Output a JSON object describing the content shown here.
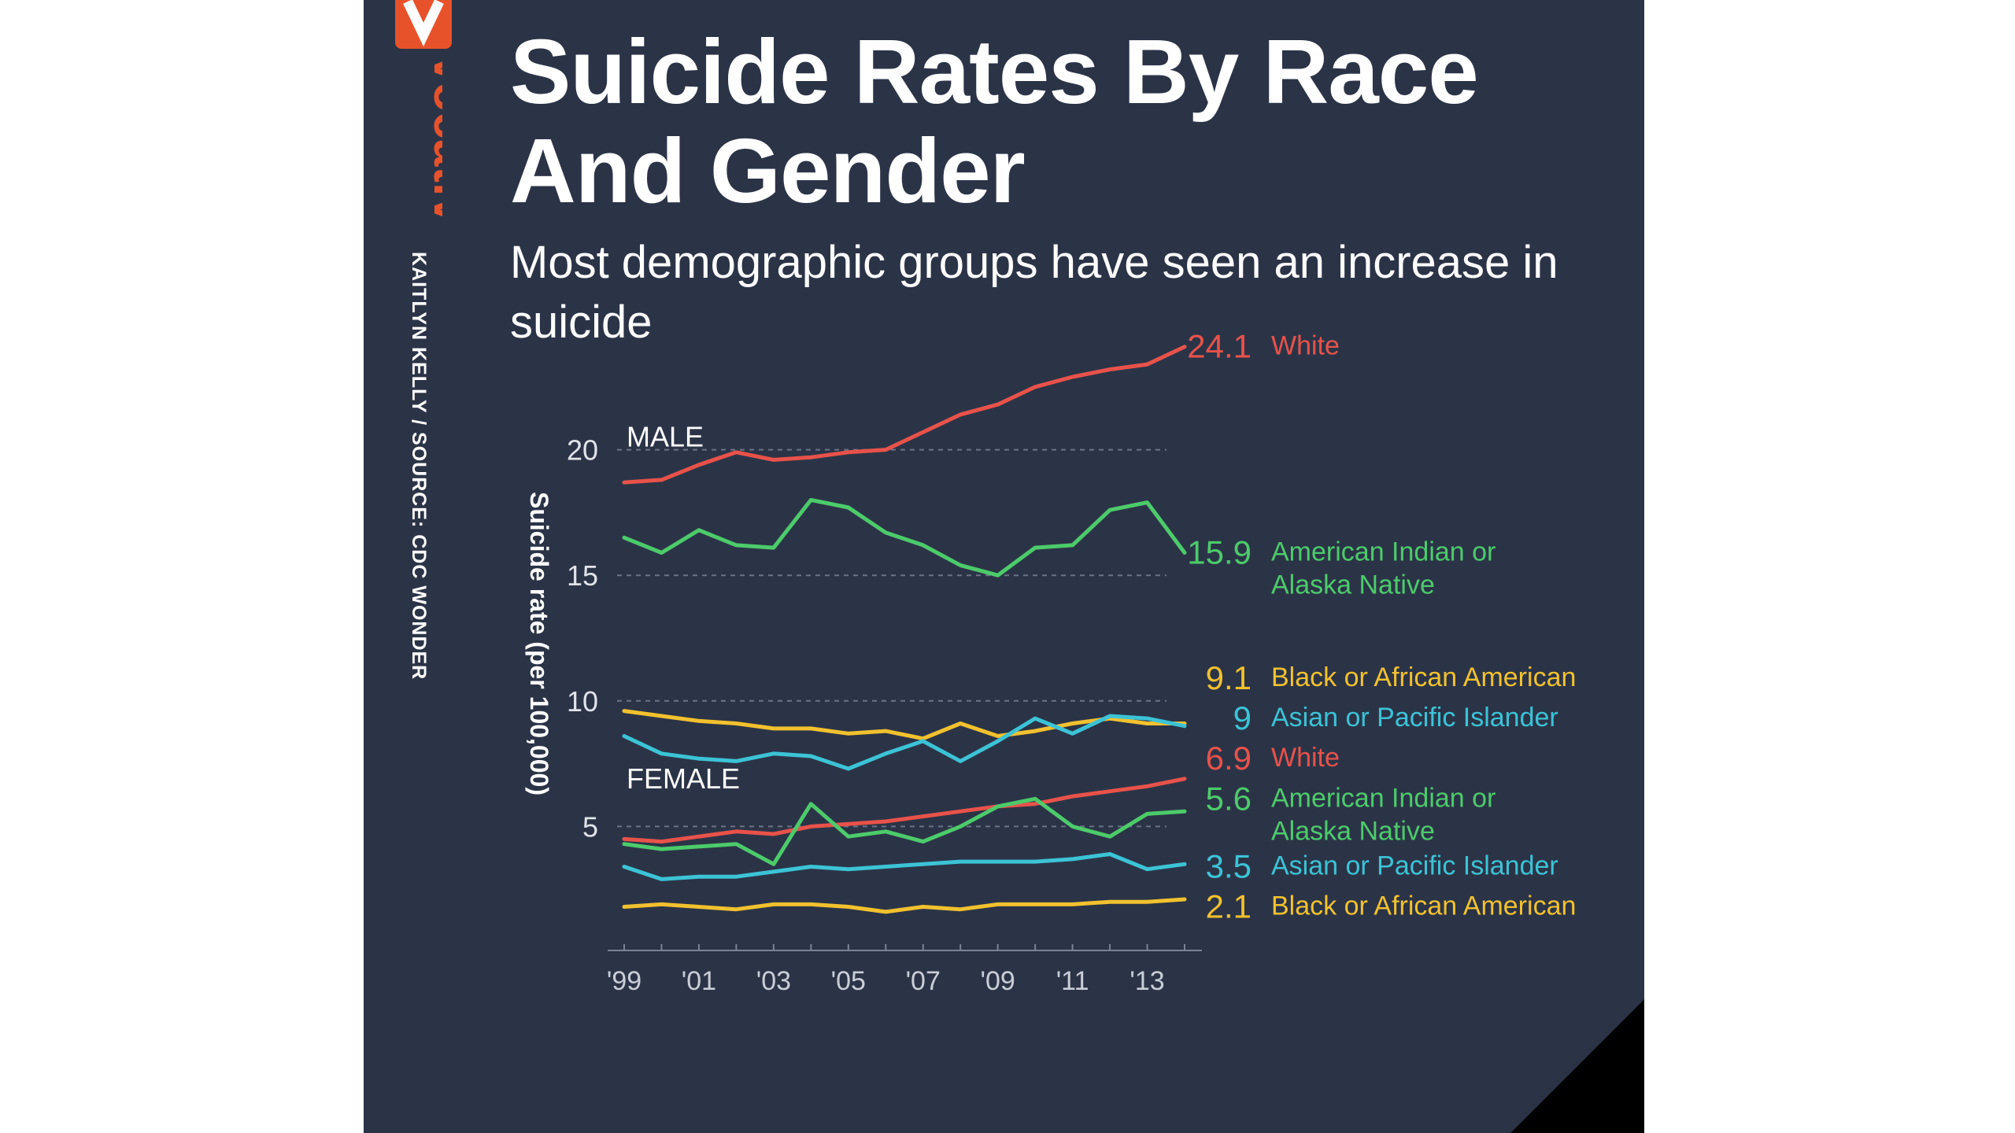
{
  "brand": {
    "name": "vocativ",
    "byline": "KAITLYN KELLY / SOURCE: CDC WONDER"
  },
  "colors": {
    "background": "#2b3447",
    "white": "#e8524a",
    "american_indian": "#4ccb6a",
    "black": "#f2c12e",
    "asian": "#3cc3d6",
    "brand": "#e8522a"
  },
  "chart_data": {
    "type": "line",
    "title": "Suicide Rates By Race And Gender",
    "subtitle": "Most demographic groups have seen an increase in suicide",
    "ylabel": "Suicide rate (per 100,000)",
    "xlabel": "",
    "ylim": [
      0,
      25
    ],
    "yticks": [
      5,
      10,
      15,
      20
    ],
    "grid": true,
    "x": [
      1999,
      2000,
      2001,
      2002,
      2003,
      2004,
      2005,
      2006,
      2007,
      2008,
      2009,
      2010,
      2011,
      2012,
      2013,
      2014
    ],
    "xtick_labels": [
      "'99",
      "'01",
      "'03",
      "'05",
      "'07",
      "'09",
      "'11",
      "'13"
    ],
    "xtick_years": [
      1999,
      2001,
      2003,
      2005,
      2007,
      2009,
      2011,
      2013
    ],
    "groups": [
      {
        "label": "MALE",
        "label_y": 20.5
      },
      {
        "label": "FEMALE",
        "label_y": 6.9
      }
    ],
    "series": [
      {
        "name": "White",
        "group": "MALE",
        "color": "#e8524a",
        "end_value": "24.1",
        "label_y": 24.1,
        "name_lines": [
          "White"
        ],
        "values": [
          18.7,
          18.8,
          19.4,
          19.9,
          19.6,
          19.7,
          19.9,
          20.0,
          20.7,
          21.4,
          21.8,
          22.5,
          22.9,
          23.2,
          23.4,
          24.1
        ]
      },
      {
        "name": "American Indian or Alaska Native",
        "group": "MALE",
        "color": "#4ccb6a",
        "end_value": "15.9",
        "label_y": 15.9,
        "name_lines": [
          "American Indian or",
          "Alaska Native"
        ],
        "values": [
          16.5,
          15.9,
          16.8,
          16.2,
          16.1,
          18.0,
          17.7,
          16.7,
          16.2,
          15.4,
          15.0,
          16.1,
          16.2,
          17.6,
          17.9,
          15.9
        ]
      },
      {
        "name": "Black or African American",
        "group": "MALE",
        "color": "#f2c12e",
        "end_value": "9.1",
        "label_y": 10.9,
        "name_lines": [
          "Black or African American"
        ],
        "values": [
          9.6,
          9.4,
          9.2,
          9.1,
          8.9,
          8.9,
          8.7,
          8.8,
          8.5,
          9.1,
          8.6,
          8.8,
          9.1,
          9.3,
          9.1,
          9.1
        ]
      },
      {
        "name": "Asian or Pacific Islander",
        "group": "MALE",
        "color": "#3cc3d6",
        "end_value": "9",
        "label_y": 9.3,
        "name_lines": [
          "Asian or Pacific Islander"
        ],
        "values": [
          8.6,
          7.9,
          7.7,
          7.6,
          7.9,
          7.8,
          7.3,
          7.9,
          8.4,
          7.6,
          8.4,
          9.3,
          8.7,
          9.4,
          9.3,
          9.0
        ]
      },
      {
        "name": "White",
        "group": "FEMALE",
        "color": "#e8524a",
        "end_value": "6.9",
        "label_y": 7.7,
        "name_lines": [
          "White"
        ],
        "values": [
          4.5,
          4.4,
          4.6,
          4.8,
          4.7,
          5.0,
          5.1,
          5.2,
          5.4,
          5.6,
          5.8,
          5.9,
          6.2,
          6.4,
          6.6,
          6.9
        ]
      },
      {
        "name": "American Indian or Alaska Native",
        "group": "FEMALE",
        "color": "#4ccb6a",
        "end_value": "5.6",
        "label_y": 6.1,
        "name_lines": [
          "American Indian or",
          "Alaska Native"
        ],
        "values": [
          4.3,
          4.1,
          4.2,
          4.3,
          3.5,
          5.9,
          4.6,
          4.8,
          4.4,
          5.0,
          5.8,
          6.1,
          5.0,
          4.6,
          5.5,
          5.6
        ]
      },
      {
        "name": "Asian or Pacific Islander",
        "group": "FEMALE",
        "color": "#3cc3d6",
        "end_value": "3.5",
        "label_y": 3.4,
        "name_lines": [
          "Asian or Pacific Islander"
        ],
        "values": [
          3.4,
          2.9,
          3.0,
          3.0,
          3.2,
          3.4,
          3.3,
          3.4,
          3.5,
          3.6,
          3.6,
          3.6,
          3.7,
          3.9,
          3.3,
          3.5
        ]
      },
      {
        "name": "Black or African American",
        "group": "FEMALE",
        "color": "#f2c12e",
        "end_value": "2.1",
        "label_y": 1.8,
        "name_lines": [
          "Black or African American"
        ],
        "values": [
          1.8,
          1.9,
          1.8,
          1.7,
          1.9,
          1.9,
          1.8,
          1.6,
          1.8,
          1.7,
          1.9,
          1.9,
          1.9,
          2.0,
          2.0,
          2.1
        ]
      }
    ]
  }
}
